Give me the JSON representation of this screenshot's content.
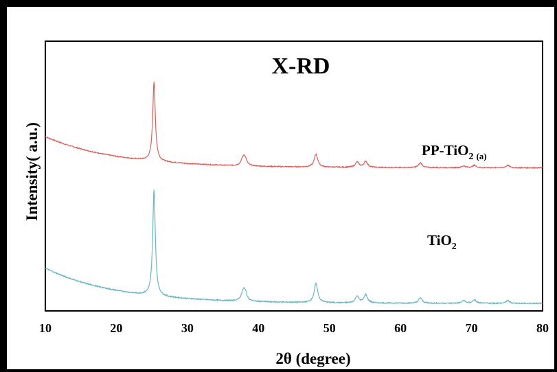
{
  "chart_data": {
    "type": "line",
    "title": "X-RD",
    "xlabel": "2θ (degree)",
    "ylabel": "Intensity( a.u.)",
    "xlim": [
      10,
      80
    ],
    "x_ticks": [
      "10",
      "20",
      "30",
      "40",
      "50",
      "60",
      "70",
      "80"
    ],
    "grid": false,
    "series_labels": {
      "pp_tio2": {
        "base": "PP-TiO",
        "sub1": "2",
        "sub2": "(a)"
      },
      "tio2": {
        "base": "TiO",
        "sub1": "2"
      }
    },
    "series": [
      {
        "name": "PP-TiO2 (a)",
        "color": "#d9625c",
        "baseline": 0.06,
        "background": {
          "a": 0.26,
          "tau": 10
        },
        "peaks": [
          [
            25.3,
            0.66
          ],
          [
            37.8,
            0.05
          ],
          [
            38.1,
            0.06
          ],
          [
            48.1,
            0.11
          ],
          [
            53.9,
            0.045
          ],
          [
            55.1,
            0.05
          ],
          [
            62.8,
            0.04
          ],
          [
            68.9,
            0.015
          ],
          [
            70.4,
            0.02
          ],
          [
            75.1,
            0.02
          ]
        ]
      },
      {
        "name": "TiO2",
        "color": "#6ab6c4",
        "baseline": 0.03,
        "background": {
          "a": 0.26,
          "tau": 10
        },
        "peaks": [
          [
            25.3,
            0.78
          ],
          [
            37.8,
            0.05
          ],
          [
            38.1,
            0.07
          ],
          [
            48.1,
            0.14
          ],
          [
            53.9,
            0.05
          ],
          [
            55.1,
            0.06
          ],
          [
            62.8,
            0.04
          ],
          [
            68.9,
            0.02
          ],
          [
            70.4,
            0.025
          ],
          [
            75.1,
            0.02
          ]
        ]
      }
    ]
  }
}
